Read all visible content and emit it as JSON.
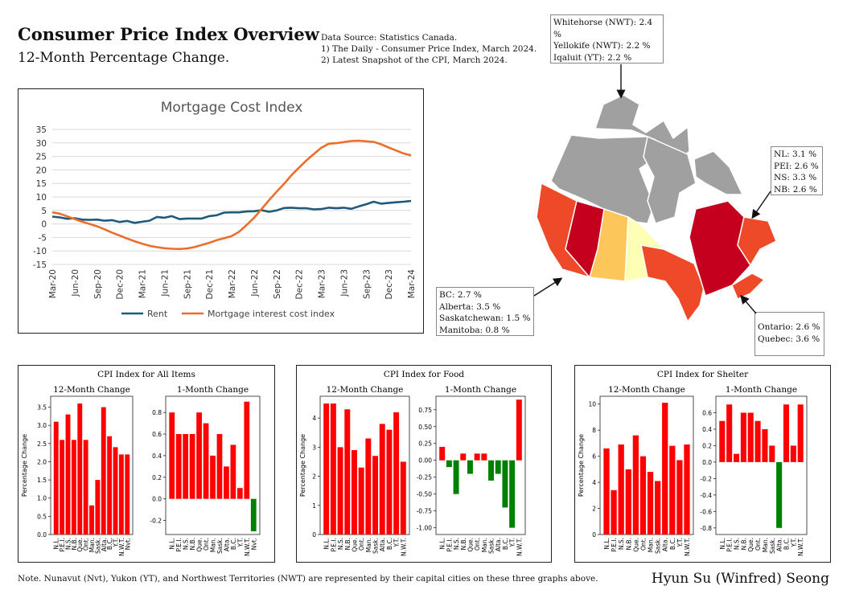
{
  "header": {
    "title": "Consumer Price Index Overview",
    "subtitle": "12-Month Percentage Change.",
    "source_lines": [
      "Data Source: Statistics Canada.",
      "1) The Daily - Consumer Price Index, March 2024.",
      "2) Latest Snapshot of the CPI, March 2024."
    ]
  },
  "annotations": {
    "territories": [
      "Whitehorse (NWT): 2.4 %",
      "Yellokife (NWT): 2.2 %",
      "Iqaluit (YT): 2.2 %"
    ],
    "atlantic": [
      "NL: 3.1 %",
      "PEI: 2.6 %",
      "NS: 3.3 %",
      "NB: 2.6 %"
    ],
    "west": [
      "BC: 2.7 %",
      "Alberta: 3.5 %",
      "Saskatchewan: 1.5 %",
      "Manitoba: 0.8 %"
    ],
    "central": [
      "Ontario: 2.6 %",
      "Quebec: 3.6 %"
    ]
  },
  "map_colors": {
    "territories": "#a0a0a0",
    "BC": "#ee4a2a",
    "Alberta": "#c4001e",
    "Saskatchewan": "#fdc65a",
    "Manitoba": "#feffb5",
    "Ontario": "#ee4a2a",
    "Quebec": "#c4001e",
    "Atlantic": "#ee4a2a",
    "border": "#ffffff"
  },
  "footer": {
    "note": "Note. Nunavut (Nvt), Yukon (YT), and Northwest Territories (NWT) are represented by their capital cities on these three graphs above.",
    "author": "Hyun Su (Winfred) Seong"
  },
  "chart_data": [
    {
      "type": "line",
      "title": "Mortgage Cost Index",
      "x": [
        "Mar-20",
        "Apr-20",
        "May-20",
        "Jun-20",
        "Jul-20",
        "Aug-20",
        "Sep-20",
        "Oct-20",
        "Nov-20",
        "Dec-20",
        "Jan-21",
        "Feb-21",
        "Mar-21",
        "Apr-21",
        "May-21",
        "Jun-21",
        "Jul-21",
        "Aug-21",
        "Sep-21",
        "Oct-21",
        "Nov-21",
        "Dec-21",
        "Jan-22",
        "Feb-22",
        "Mar-22",
        "Apr-22",
        "May-22",
        "Jun-22",
        "Jul-22",
        "Aug-22",
        "Sep-22",
        "Oct-22",
        "Nov-22",
        "Dec-22",
        "Jan-23",
        "Feb-23",
        "Mar-23",
        "Apr-23",
        "May-23",
        "Jun-23",
        "Jul-23",
        "Aug-23",
        "Sep-23",
        "Oct-23",
        "Nov-23",
        "Dec-23",
        "Jan-24",
        "Feb-24",
        "Mar-24"
      ],
      "xticks": [
        "Mar-20",
        "Jun-20",
        "Sep-20",
        "Dec-20",
        "Mar-21",
        "Jun-21",
        "Sep-21",
        "Dec-21",
        "Mar-22",
        "Jun-22",
        "Sep-22",
        "Dec-22",
        "Mar-23",
        "Jun-23",
        "Sep-23",
        "Dec-23",
        "Mar-24"
      ],
      "ylim": [
        -15,
        35
      ],
      "yticks": [
        -15,
        -10,
        -5,
        0,
        5,
        10,
        15,
        20,
        25,
        30,
        35
      ],
      "legend": "bottom",
      "series": [
        {
          "name": "Rent",
          "color": "#1f5a7a",
          "values": [
            2.7,
            2.4,
            1.9,
            2.1,
            1.6,
            1.5,
            1.6,
            1.2,
            1.4,
            0.7,
            1.1,
            0.4,
            0.8,
            1.2,
            2.6,
            2.3,
            2.9,
            1.8,
            2.0,
            2.0,
            2.0,
            2.9,
            3.2,
            4.2,
            4.3,
            4.3,
            4.6,
            4.7,
            5.1,
            4.5,
            5.0,
            5.9,
            6.0,
            5.8,
            5.8,
            5.4,
            5.5,
            6.0,
            5.8,
            6.0,
            5.6,
            6.5,
            7.3,
            8.2,
            7.5,
            7.8,
            8.0,
            8.2,
            8.5
          ]
        },
        {
          "name": "Mortgage interest cost index",
          "color": "#ec6e2b",
          "values": [
            4.3,
            3.8,
            2.8,
            1.8,
            0.8,
            0.0,
            -0.9,
            -2.0,
            -3.2,
            -4.3,
            -5.4,
            -6.4,
            -7.3,
            -8.1,
            -8.6,
            -9.0,
            -9.2,
            -9.3,
            -9.1,
            -8.6,
            -7.8,
            -7.0,
            -6.0,
            -5.3,
            -4.5,
            -2.9,
            -0.4,
            2.3,
            5.5,
            8.8,
            11.9,
            14.8,
            18.0,
            20.8,
            23.5,
            25.9,
            28.2,
            29.7,
            29.9,
            30.3,
            30.7,
            30.8,
            30.6,
            30.4,
            29.5,
            28.3,
            27.2,
            26.1,
            25.4
          ]
        }
      ]
    },
    {
      "type": "bar",
      "title": "CPI Index for All Items",
      "ylabel": "Percentage Change",
      "subplots": [
        {
          "title": "12-Month Change",
          "categories": [
            "N.L.",
            "P.E.I.",
            "N.S.",
            "N.B.",
            "Que.",
            "Ont.",
            "Man.",
            "Sask.",
            "Alta.",
            "B.C.",
            "Y.T.",
            "N.W.T.",
            "Nvt."
          ],
          "values": [
            3.1,
            2.6,
            3.3,
            2.6,
            3.6,
            2.6,
            0.8,
            1.5,
            3.5,
            2.7,
            2.4,
            2.2,
            2.2
          ],
          "ylim": [
            0,
            3.8
          ],
          "yticks": [
            "0.0",
            "0.5",
            "1.0",
            "1.5",
            "2.0",
            "2.5",
            "3.0",
            "3.5"
          ]
        },
        {
          "title": "1-Month Change",
          "categories": [
            "N.L.",
            "P.E.I.",
            "N.S.",
            "N.B.",
            "Que.",
            "Ont.",
            "Man.",
            "Sask.",
            "Alta.",
            "B.C.",
            "Y.T.",
            "N.W.T.",
            "Nvt."
          ],
          "values": [
            0.8,
            0.6,
            0.6,
            0.6,
            0.8,
            0.7,
            0.4,
            0.6,
            0.3,
            0.5,
            0.1,
            0.9,
            -0.3
          ],
          "ylim": [
            -0.33,
            0.95
          ],
          "yticks": [
            "-0.2",
            "0.0",
            "0.2",
            "0.4",
            "0.6",
            "0.8"
          ]
        }
      ]
    },
    {
      "type": "bar",
      "title": "CPI Index for Food",
      "ylabel": "Percentage Change",
      "subplots": [
        {
          "title": "12-Month Change",
          "categories": [
            "N.L.",
            "P.E.I.",
            "N.S.",
            "N.B.",
            "Que.",
            "Ont.",
            "Man.",
            "Sask.",
            "Alta.",
            "B.C.",
            "Y.T.",
            "N.W.T."
          ],
          "values": [
            4.5,
            4.5,
            3.0,
            4.3,
            2.9,
            2.3,
            3.3,
            2.7,
            3.8,
            3.6,
            4.2,
            2.5
          ],
          "ylim": [
            0,
            4.75
          ],
          "yticks": [
            "0",
            "1",
            "2",
            "3",
            "4"
          ]
        },
        {
          "title": "1-Month Change",
          "categories": [
            "N.L.",
            "P.E.I.",
            "N.S.",
            "N.B.",
            "Que.",
            "Ont.",
            "Man.",
            "Sask.",
            "Alta.",
            "B.C.",
            "Y.T.",
            "N.W.T."
          ],
          "values": [
            0.2,
            -0.1,
            -0.5,
            0.1,
            -0.2,
            0.1,
            0.1,
            -0.3,
            -0.2,
            -0.7,
            -1.0,
            0.9
          ],
          "ylim": [
            -1.1,
            0.95
          ],
          "yticks": [
            "-1.00",
            "-0.75",
            "-0.50",
            "-0.25",
            "0.00",
            "0.25",
            "0.50",
            "0.75"
          ]
        }
      ]
    },
    {
      "type": "bar",
      "title": "CPI Index for Shelter",
      "ylabel": "Percentage Change",
      "subplots": [
        {
          "title": "12-Month Change",
          "categories": [
            "N.L.",
            "P.E.I.",
            "N.S.",
            "N.B.",
            "Que.",
            "Ont.",
            "Man.",
            "Sask.",
            "Alta.",
            "B.C.",
            "Y.T.",
            "N.W.T."
          ],
          "values": [
            6.6,
            3.4,
            6.9,
            5.0,
            7.6,
            6.0,
            4.8,
            4.1,
            10.1,
            6.8,
            5.7,
            6.9
          ],
          "ylim": [
            0,
            10.6
          ],
          "yticks": [
            "0",
            "2",
            "4",
            "6",
            "8",
            "10"
          ]
        },
        {
          "title": "1-Month Change",
          "categories": [
            "N.L.",
            "P.E.I.",
            "N.S.",
            "N.B.",
            "Que.",
            "Ont.",
            "Man.",
            "Sask.",
            "Alta.",
            "B.C.",
            "Y.T.",
            "N.W.T."
          ],
          "values": [
            0.5,
            0.7,
            0.1,
            0.6,
            0.6,
            0.5,
            0.4,
            0.2,
            -0.8,
            0.7,
            0.2,
            0.7
          ],
          "ylim": [
            -0.88,
            0.8
          ],
          "yticks": [
            "-0.8",
            "-0.6",
            "-0.4",
            "-0.2",
            "0.0",
            "0.2",
            "0.4",
            "0.6"
          ]
        }
      ]
    }
  ]
}
